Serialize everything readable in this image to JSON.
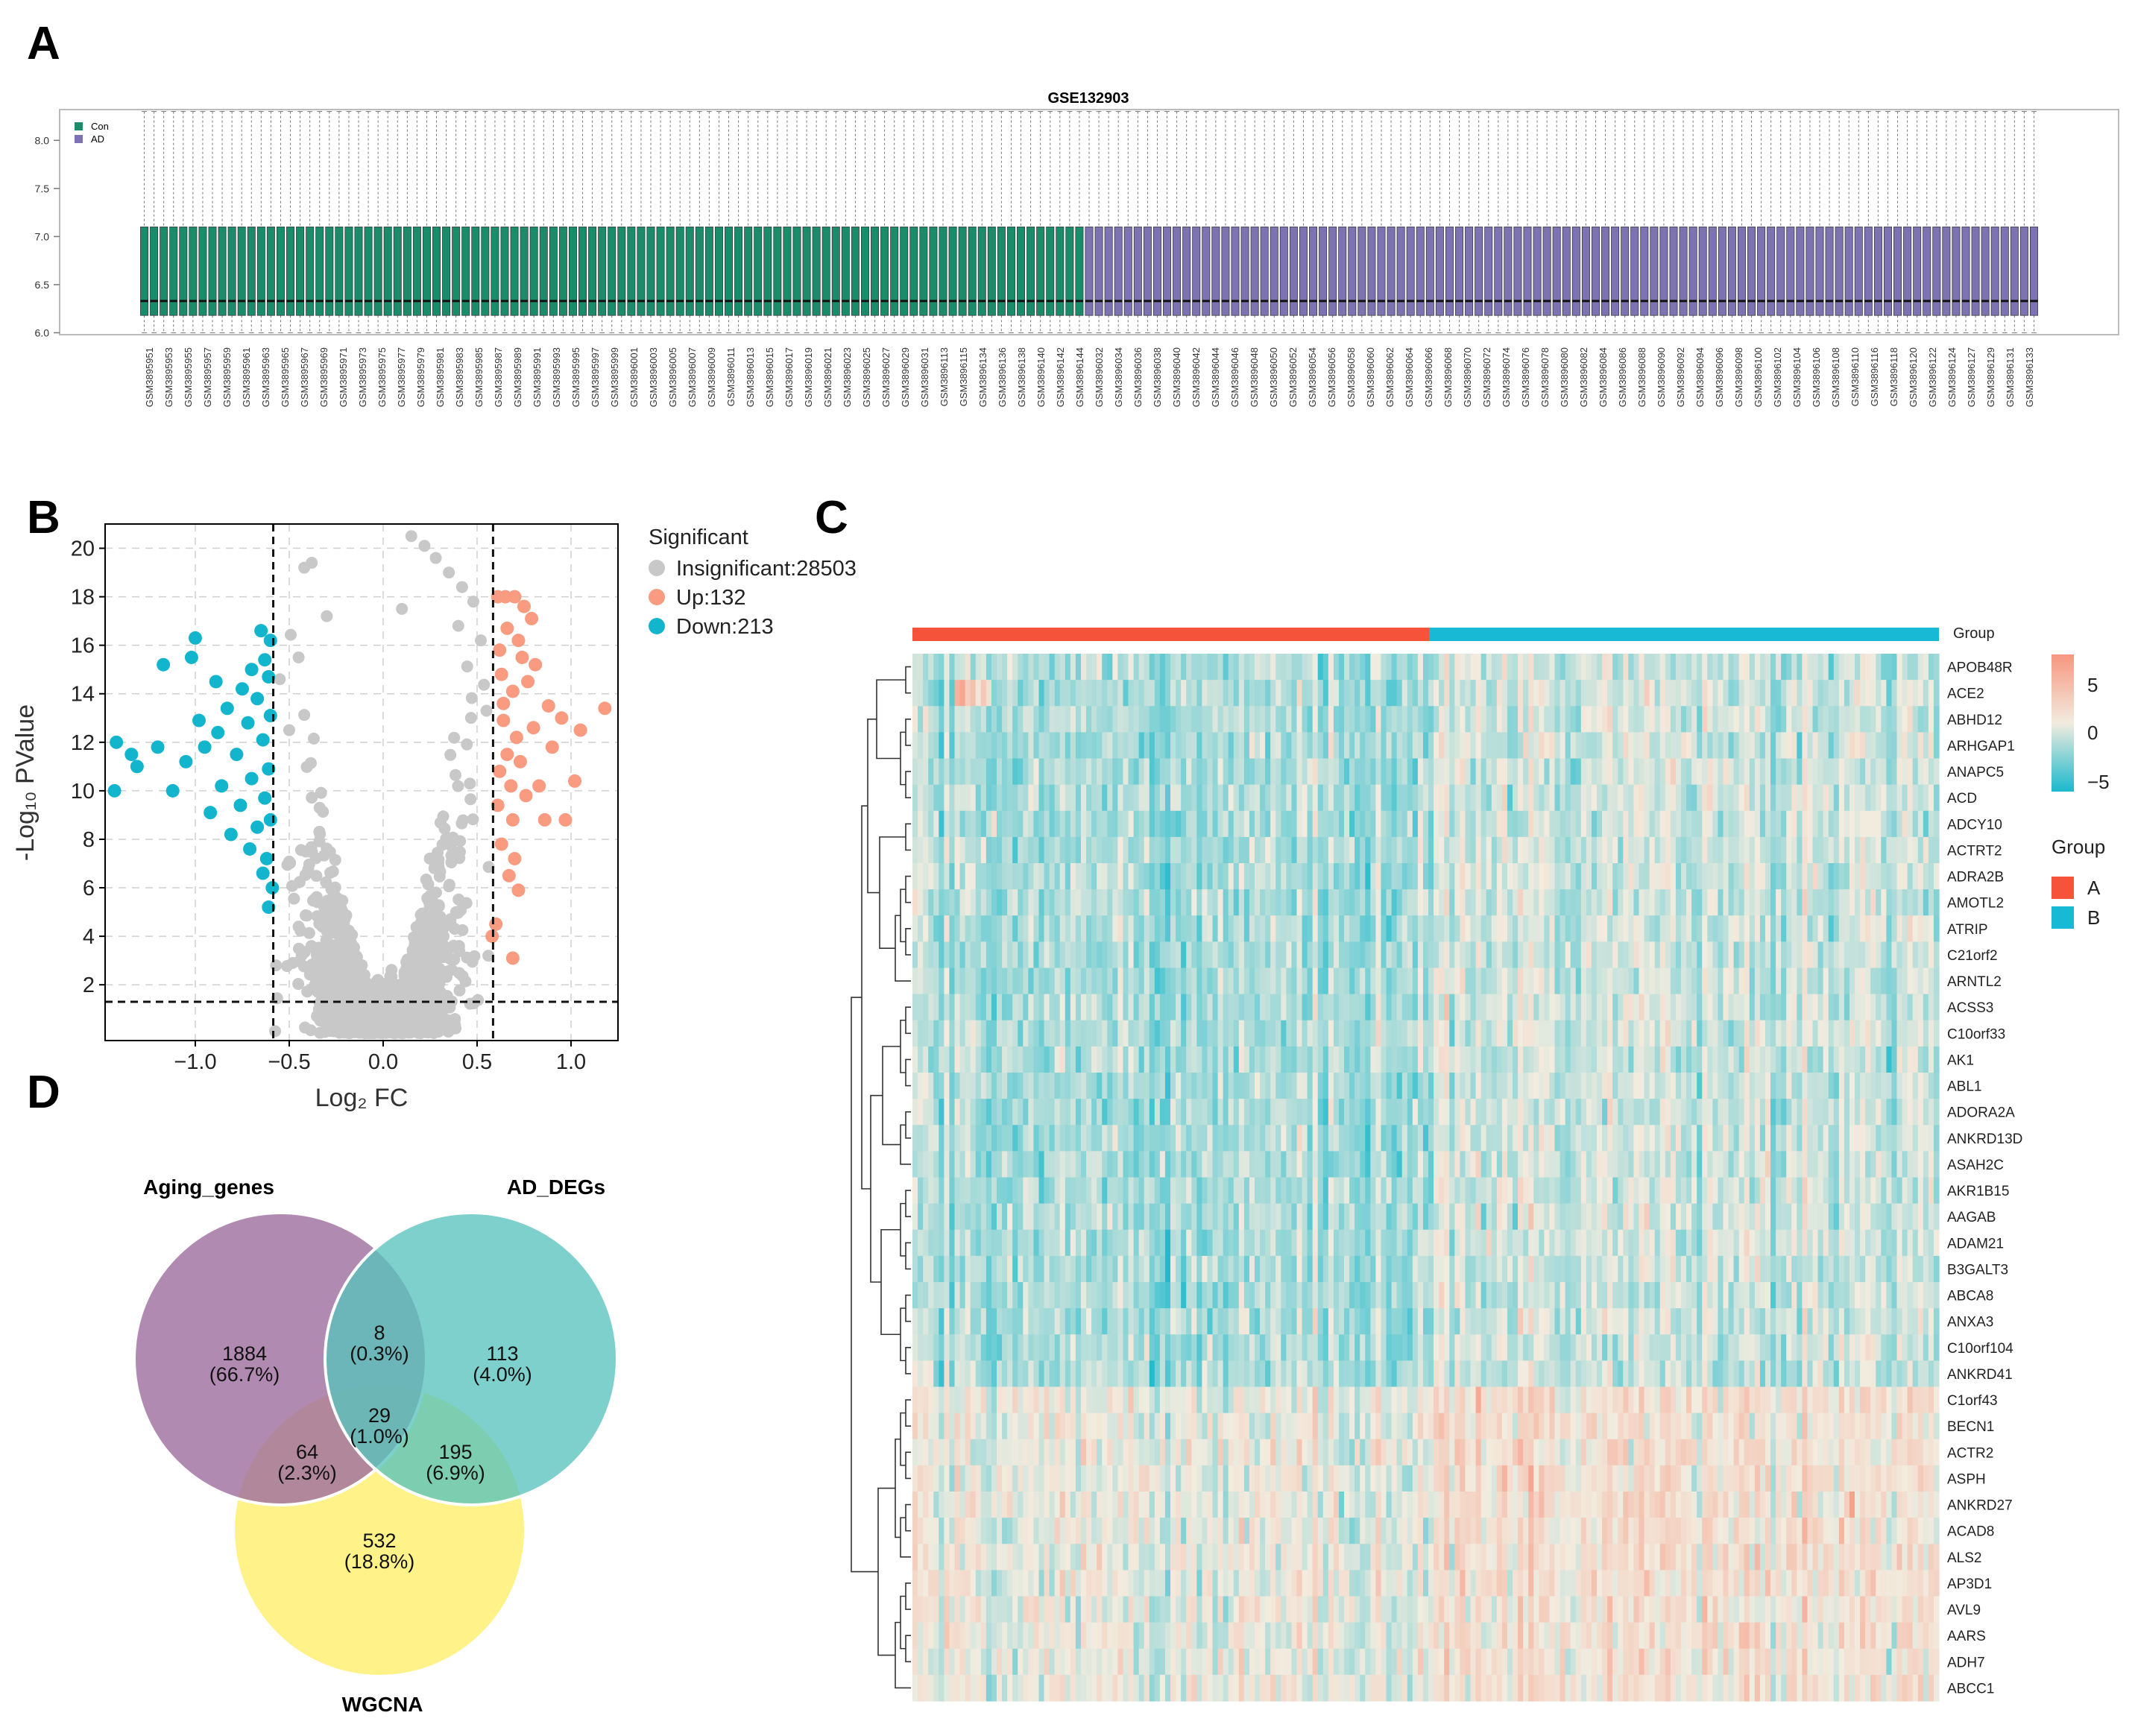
{
  "panels": {
    "a": "A",
    "b": "B",
    "c": "C",
    "d": "D"
  },
  "colors": {
    "con": "#1b8c6a",
    "ad": "#7d73b3",
    "insignificant": "#c8c8c8",
    "up": "#f89b80",
    "down": "#13b5cc",
    "heat_low": "#19b9cc",
    "heat_mid": "#f2ecdf",
    "heat_high": "#f7967f",
    "group_a": "#f5543a",
    "group_b": "#18b9d4",
    "venn_aging": "#a070a0",
    "venn_ad": "#58c3bd",
    "venn_wgcna": "#fff182"
  },
  "chart_data": [
    {
      "type": "box",
      "title": "GSE132903",
      "legend": [
        "Con",
        "AD"
      ],
      "legend_placement": "top-left",
      "yticks": [
        "6.0",
        "6.5",
        "7.0",
        "7.5",
        "8.0"
      ],
      "ylim": [
        5.98,
        8.32
      ],
      "box_stats": {
        "whisker_low": 6.0,
        "q1": 6.18,
        "median": 6.33,
        "q3": 7.1,
        "whisker_high": 8.3
      },
      "sample_count_con": 97,
      "sample_count_ad": 98,
      "categories_con": [
        "GSM3895951",
        "GSM3895953",
        "GSM3895955",
        "GSM3895957",
        "GSM3895959",
        "GSM3895961",
        "GSM3895963",
        "GSM3895965",
        "GSM3895967",
        "GSM3895969",
        "GSM3895971",
        "GSM3895973",
        "GSM3895975",
        "GSM3895977",
        "GSM3895979",
        "GSM3895981",
        "GSM3895983",
        "GSM3895985",
        "GSM3895987",
        "GSM3895989",
        "GSM3895991",
        "GSM3895993",
        "GSM3895995",
        "GSM3895997",
        "GSM3895999",
        "GSM3896001",
        "GSM3896003",
        "GSM3896005",
        "GSM3896007",
        "GSM3896009",
        "GSM3896011",
        "GSM3896013",
        "GSM3896015",
        "GSM3896017",
        "GSM3896019",
        "GSM3896021",
        "GSM3896023",
        "GSM3896025",
        "GSM3896027",
        "GSM3896029",
        "GSM3896031",
        "GSM3896113",
        "GSM3896115",
        "GSM3896134",
        "GSM3896136",
        "GSM3896138",
        "GSM3896140",
        "GSM3896142",
        "GSM3896144"
      ],
      "categories_ad": [
        "GSM3896032",
        "GSM3896034",
        "GSM3896036",
        "GSM3896038",
        "GSM3896040",
        "GSM3896042",
        "GSM3896044",
        "GSM3896046",
        "GSM3896048",
        "GSM3896050",
        "GSM3896052",
        "GSM3896054",
        "GSM3896056",
        "GSM3896058",
        "GSM3896060",
        "GSM3896062",
        "GSM3896064",
        "GSM3896066",
        "GSM3896068",
        "GSM3896070",
        "GSM3896072",
        "GSM3896074",
        "GSM3896076",
        "GSM3896078",
        "GSM3896080",
        "GSM3896082",
        "GSM3896084",
        "GSM3896086",
        "GSM3896088",
        "GSM3896090",
        "GSM3896092",
        "GSM3896094",
        "GSM3896096",
        "GSM3896098",
        "GSM3896100",
        "GSM3896102",
        "GSM3896104",
        "GSM3896106",
        "GSM3896108",
        "GSM3896110",
        "GSM3896116",
        "GSM3896118",
        "GSM3896120",
        "GSM3896122",
        "GSM3896124",
        "GSM3896127",
        "GSM3896129",
        "GSM3896131",
        "GSM3896133"
      ]
    },
    {
      "type": "scatter",
      "xlabel": "Log₂ FC",
      "ylabel": "-Log₁₀ PValue",
      "xlim": [
        -1.48,
        1.25
      ],
      "ylim": [
        -0.3,
        21
      ],
      "xticks": [
        -1.0,
        -0.5,
        0.0,
        0.5,
        1.0
      ],
      "xtick_labels": [
        "−1.0",
        "−0.5",
        "0.0",
        "0.5",
        "1.0"
      ],
      "yticks": [
        2,
        4,
        6,
        8,
        10,
        12,
        14,
        16,
        18,
        20
      ],
      "fc_cutoffs": [
        -0.585,
        0.585
      ],
      "p_cutoff_y": 1.3,
      "legend_title": "Significant",
      "legend": [
        "Insignificant:28503",
        "Up:132",
        "Down:213"
      ],
      "legend_placement": "right",
      "grid": true,
      "up_points": [
        [
          0.61,
          18
        ],
        [
          0.65,
          18
        ],
        [
          0.7,
          18
        ],
        [
          0.75,
          17.6
        ],
        [
          0.79,
          17.1
        ],
        [
          0.66,
          16.7
        ],
        [
          0.72,
          16.2
        ],
        [
          0.62,
          15.8
        ],
        [
          0.74,
          15.5
        ],
        [
          0.81,
          15.2
        ],
        [
          0.63,
          14.8
        ],
        [
          0.77,
          14.5
        ],
        [
          0.69,
          14.1
        ],
        [
          0.88,
          13.5
        ],
        [
          0.95,
          13
        ],
        [
          1.05,
          12.5
        ],
        [
          1.18,
          13.4
        ],
        [
          0.64,
          12.9
        ],
        [
          0.71,
          12.2
        ],
        [
          0.66,
          11.5
        ],
        [
          0.73,
          11.2
        ],
        [
          0.62,
          10.8
        ],
        [
          0.68,
          10.2
        ],
        [
          0.76,
          9.8
        ],
        [
          0.83,
          10.2
        ],
        [
          0.61,
          9.4
        ],
        [
          0.69,
          8.8
        ],
        [
          0.86,
          8.8
        ],
        [
          0.97,
          8.8
        ],
        [
          0.63,
          7.8
        ],
        [
          0.7,
          7.2
        ],
        [
          0.67,
          6.5
        ],
        [
          0.72,
          5.9
        ],
        [
          0.6,
          4.5
        ],
        [
          0.58,
          4.0
        ],
        [
          0.69,
          3.1
        ],
        [
          0.9,
          11.8
        ],
        [
          1.02,
          10.4
        ],
        [
          0.8,
          12.6
        ],
        [
          0.64,
          13.6
        ]
      ],
      "down_points": [
        [
          -1.42,
          12
        ],
        [
          -1.34,
          11.5
        ],
        [
          -1.43,
          10
        ],
        [
          -1.31,
          11
        ],
        [
          -1.17,
          15.2
        ],
        [
          -1.0,
          16.3
        ],
        [
          -1.02,
          15.5
        ],
        [
          -0.65,
          16.6
        ],
        [
          -0.6,
          16.2
        ],
        [
          -0.63,
          15.4
        ],
        [
          -0.7,
          15
        ],
        [
          -0.61,
          14.7
        ],
        [
          -0.75,
          14.2
        ],
        [
          -0.67,
          13.8
        ],
        [
          -0.83,
          13.4
        ],
        [
          -0.6,
          13.1
        ],
        [
          -0.72,
          12.8
        ],
        [
          -0.88,
          12.4
        ],
        [
          -0.64,
          12.1
        ],
        [
          -0.95,
          11.8
        ],
        [
          -0.78,
          11.5
        ],
        [
          -1.05,
          11.2
        ],
        [
          -0.61,
          10.9
        ],
        [
          -0.7,
          10.5
        ],
        [
          -0.86,
          10.2
        ],
        [
          -1.12,
          10.0
        ],
        [
          -0.63,
          9.7
        ],
        [
          -0.76,
          9.4
        ],
        [
          -0.92,
          9.1
        ],
        [
          -0.6,
          8.8
        ],
        [
          -0.67,
          8.5
        ],
        [
          -0.81,
          8.2
        ],
        [
          -0.71,
          7.6
        ],
        [
          -0.62,
          7.2
        ],
        [
          -0.64,
          6.6
        ],
        [
          -0.59,
          6.0
        ],
        [
          -0.61,
          5.2
        ],
        [
          -1.2,
          11.8
        ],
        [
          -0.98,
          12.9
        ],
        [
          -0.89,
          14.5
        ]
      ]
    },
    {
      "type": "heatmap",
      "group_label": "Group",
      "legend_title": "Group",
      "legend": [
        "A",
        "B"
      ],
      "colorbar_ticks": [
        "5",
        "0",
        "−5"
      ],
      "genes": [
        "APOB48R",
        "ACE2",
        "ABHD12",
        "ARHGAP1",
        "ANAPC5",
        "ACD",
        "ADCY10",
        "ACTRT2",
        "ADRA2B",
        "AMOTL2",
        "ATRIP",
        "C21orf2",
        "ARNTL2",
        "ACSS3",
        "C10orf33",
        "AK1",
        "ABL1",
        "ADORA2A",
        "ANKRD13D",
        "ASAH2C",
        "AKR1B15",
        "AAGAB",
        "ADAM21",
        "B3GALT3",
        "ABCA8",
        "ANXA3",
        "C10orf104",
        "ANKRD41",
        "C1orf43",
        "BECN1",
        "ACTR2",
        "ASPH",
        "ANKRD27",
        "ACAD8",
        "ALS2",
        "AP3D1",
        "AVL9",
        "AARS",
        "ADH7",
        "ABCC1"
      ]
    },
    {
      "type": "venn",
      "sets": [
        "Aging_genes",
        "AD_DEGs",
        "WGCNA"
      ],
      "regions": [
        {
          "count": "1884",
          "pct": "(66.7%)"
        },
        {
          "count": "8",
          "pct": "(0.3%)"
        },
        {
          "count": "113",
          "pct": "(4.0%)"
        },
        {
          "count": "29",
          "pct": "(1.0%)"
        },
        {
          "count": "64",
          "pct": "(2.3%)"
        },
        {
          "count": "195",
          "pct": "(6.9%)"
        },
        {
          "count": "532",
          "pct": "(18.8%)"
        }
      ]
    }
  ]
}
